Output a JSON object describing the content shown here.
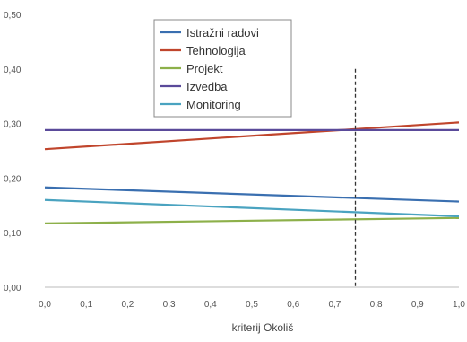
{
  "chart_data": {
    "type": "line",
    "xlabel": "kriterij Okoliš",
    "ylabel": "",
    "xlim": [
      0.0,
      1.0
    ],
    "ylim": [
      0.0,
      0.5
    ],
    "x_ticks": [
      "0,0",
      "0,1",
      "0,2",
      "0,3",
      "0,4",
      "0,5",
      "0,6",
      "0,7",
      "0,8",
      "0,9",
      "1,0"
    ],
    "y_ticks": [
      "0,00",
      "0,10",
      "0,20",
      "0,30",
      "0,40",
      "0,50"
    ],
    "grid": false,
    "legend_position": "top-center",
    "series": [
      {
        "name": "Istražni radovi",
        "color": "#3a6fb0",
        "x": [
          0.0,
          1.0
        ],
        "y": [
          0.183,
          0.157
        ]
      },
      {
        "name": "Tehnologija",
        "color": "#c0452c",
        "x": [
          0.0,
          1.0
        ],
        "y": [
          0.253,
          0.302
        ]
      },
      {
        "name": "Projekt",
        "color": "#8db04a",
        "x": [
          0.0,
          1.0
        ],
        "y": [
          0.117,
          0.127
        ]
      },
      {
        "name": "Izvedba",
        "color": "#5a4a9a",
        "x": [
          0.0,
          1.0
        ],
        "y": [
          0.288,
          0.288
        ]
      },
      {
        "name": "Monitoring",
        "color": "#4aa3c0",
        "x": [
          0.0,
          1.0
        ],
        "y": [
          0.16,
          0.13
        ]
      }
    ],
    "annotations": [
      {
        "type": "vertical-dashed-line",
        "x": 0.75,
        "y_top": 0.4
      }
    ]
  }
}
